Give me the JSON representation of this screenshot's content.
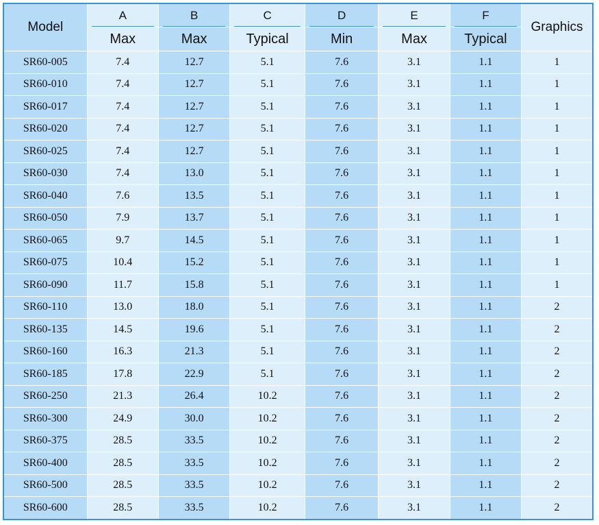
{
  "table": {
    "header": {
      "model": "Model",
      "graphics": "Graphics",
      "columns": [
        {
          "letter": "A",
          "sub": "Max"
        },
        {
          "letter": "B",
          "sub": "Max"
        },
        {
          "letter": "C",
          "sub": "Typical"
        },
        {
          "letter": "D",
          "sub": "Min"
        },
        {
          "letter": "E",
          "sub": "Max"
        },
        {
          "letter": "F",
          "sub": "Typical"
        }
      ]
    },
    "rows": [
      [
        "SR60-005",
        "7.4",
        "12.7",
        "5.1",
        "7.6",
        "3.1",
        "1.1",
        "1"
      ],
      [
        "SR60-010",
        "7.4",
        "12.7",
        "5.1",
        "7.6",
        "3.1",
        "1.1",
        "1"
      ],
      [
        "SR60-017",
        "7.4",
        "12.7",
        "5.1",
        "7.6",
        "3.1",
        "1.1",
        "1"
      ],
      [
        "SR60-020",
        "7.4",
        "12.7",
        "5.1",
        "7.6",
        "3.1",
        "1.1",
        "1"
      ],
      [
        "SR60-025",
        "7.4",
        "12.7",
        "5.1",
        "7.6",
        "3.1",
        "1.1",
        "1"
      ],
      [
        "SR60-030",
        "7.4",
        "13.0",
        "5.1",
        "7.6",
        "3.1",
        "1.1",
        "1"
      ],
      [
        "SR60-040",
        "7.6",
        "13.5",
        "5.1",
        "7.6",
        "3.1",
        "1.1",
        "1"
      ],
      [
        "SR60-050",
        "7.9",
        "13.7",
        "5.1",
        "7.6",
        "3.1",
        "1.1",
        "1"
      ],
      [
        "SR60-065",
        "9.7",
        "14.5",
        "5.1",
        "7.6",
        "3.1",
        "1.1",
        "1"
      ],
      [
        "SR60-075",
        "10.4",
        "15.2",
        "5.1",
        "7.6",
        "3.1",
        "1.1",
        "1"
      ],
      [
        "SR60-090",
        "11.7",
        "15.8",
        "5.1",
        "7.6",
        "3.1",
        "1.1",
        "1"
      ],
      [
        "SR60-110",
        "13.0",
        "18.0",
        "5.1",
        "7.6",
        "3.1",
        "1.1",
        "2"
      ],
      [
        "SR60-135",
        "14.5",
        "19.6",
        "5.1",
        "7.6",
        "3.1",
        "1.1",
        "2"
      ],
      [
        "SR60-160",
        "16.3",
        "21.3",
        "5.1",
        "7.6",
        "3.1",
        "1.1",
        "2"
      ],
      [
        "SR60-185",
        "17.8",
        "22.9",
        "5.1",
        "7.6",
        "3.1",
        "1.1",
        "2"
      ],
      [
        "SR60-250",
        "21.3",
        "26.4",
        "10.2",
        "7.6",
        "3.1",
        "1.1",
        "2"
      ],
      [
        "SR60-300",
        "24.9",
        "30.0",
        "10.2",
        "7.6",
        "3.1",
        "1.1",
        "2"
      ],
      [
        "SR60-375",
        "28.5",
        "33.5",
        "10.2",
        "7.6",
        "3.1",
        "1.1",
        "2"
      ],
      [
        "SR60-400",
        "28.5",
        "33.5",
        "10.2",
        "7.6",
        "3.1",
        "1.1",
        "2"
      ],
      [
        "SR60-500",
        "28.5",
        "33.5",
        "10.2",
        "7.6",
        "3.1",
        "1.1",
        "2"
      ],
      [
        "SR60-600",
        "28.5",
        "33.5",
        "10.2",
        "7.6",
        "3.1",
        "1.1",
        "2"
      ]
    ]
  },
  "colors": {
    "border": "#3a93d8",
    "dark_column": "#b6dbf7",
    "light_column": "#deeffc"
  }
}
